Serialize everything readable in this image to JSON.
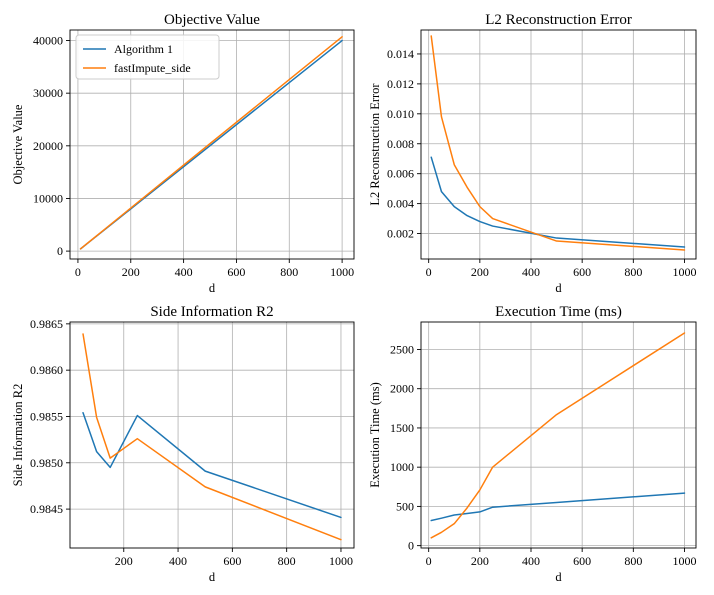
{
  "colors": {
    "algorithm1": "#1f77b4",
    "fastimpute": "#ff7f0e"
  },
  "chart_data": [
    {
      "type": "line",
      "title": "Objective Value",
      "xlabel": "d",
      "ylabel": "Objective Value",
      "xlim": [
        -30,
        1045
      ],
      "ylim": [
        -1500,
        42000
      ],
      "xticks": [
        0,
        200,
        400,
        600,
        800,
        1000
      ],
      "yticks": [
        0,
        10000,
        20000,
        30000,
        40000
      ],
      "grid": true,
      "legend": {
        "placement": "top-left",
        "entries": [
          "Algorithm 1",
          "fastImpute_side"
        ]
      },
      "series": [
        {
          "name": "Algorithm 1",
          "color": "#1f77b4",
          "x": [
            10,
            50,
            100,
            150,
            200,
            250,
            500,
            1000
          ],
          "y": [
            420,
            2020,
            4020,
            6020,
            8020,
            10020,
            20020,
            40000
          ]
        },
        {
          "name": "fastImpute_side",
          "color": "#ff7f0e",
          "x": [
            10,
            50,
            100,
            150,
            200,
            250,
            500,
            1000
          ],
          "y": [
            430,
            2060,
            4100,
            6140,
            8180,
            10220,
            20420,
            40700
          ]
        }
      ]
    },
    {
      "type": "line",
      "title": "L2 Reconstruction Error",
      "xlabel": "d",
      "ylabel": "L2 Reconstruction Error",
      "xlim": [
        -30,
        1045
      ],
      "ylim": [
        0.0003,
        0.0156
      ],
      "xticks": [
        0,
        200,
        400,
        600,
        800,
        1000
      ],
      "yticks": [
        0.002,
        0.004,
        0.006,
        0.008,
        0.01,
        0.012,
        0.014
      ],
      "yticklabels": [
        "0.002",
        "0.004",
        "0.006",
        "0.008",
        "0.010",
        "0.012",
        "0.014"
      ],
      "grid": true,
      "series": [
        {
          "name": "Algorithm 1",
          "color": "#1f77b4",
          "x": [
            10,
            50,
            100,
            150,
            200,
            250,
            500,
            1000
          ],
          "y": [
            0.0071,
            0.0048,
            0.0038,
            0.0032,
            0.0028,
            0.0025,
            0.0017,
            0.0011
          ]
        },
        {
          "name": "fastImpute_side",
          "color": "#ff7f0e",
          "x": [
            10,
            50,
            100,
            150,
            200,
            250,
            500,
            1000
          ],
          "y": [
            0.0152,
            0.0098,
            0.0066,
            0.0051,
            0.0038,
            0.003,
            0.0015,
            0.0009
          ]
        }
      ]
    },
    {
      "type": "line",
      "title": "Side Information R2",
      "xlabel": "d",
      "ylabel": "Side Information R2",
      "xlim": [
        2,
        1048
      ],
      "ylim": [
        0.98408,
        0.98652
      ],
      "xticks": [
        200,
        400,
        600,
        800,
        1000
      ],
      "yticks": [
        0.9845,
        0.985,
        0.9855,
        0.986,
        0.9865
      ],
      "yticklabels": [
        "0.9845",
        "0.9850",
        "0.9855",
        "0.9860",
        "0.9865"
      ],
      "grid": true,
      "series": [
        {
          "name": "Algorithm 1",
          "color": "#1f77b4",
          "x": [
            50,
            100,
            150,
            250,
            500,
            1000
          ],
          "y": [
            0.98554,
            0.98512,
            0.98495,
            0.98551,
            0.98491,
            0.98441
          ]
        },
        {
          "name": "fastImpute_side",
          "color": "#ff7f0e",
          "x": [
            50,
            100,
            150,
            250,
            500,
            1000
          ],
          "y": [
            0.98639,
            0.98549,
            0.98505,
            0.98526,
            0.98474,
            0.98417
          ]
        }
      ]
    },
    {
      "type": "line",
      "title": "Execution Time (ms)",
      "xlabel": "d",
      "ylabel": "Execution Time (ms)",
      "xlim": [
        -30,
        1045
      ],
      "ylim": [
        -30,
        2850
      ],
      "xticks": [
        0,
        200,
        400,
        600,
        800,
        1000
      ],
      "yticks": [
        0,
        500,
        1000,
        1500,
        2000,
        2500
      ],
      "grid": true,
      "series": [
        {
          "name": "Algorithm 1",
          "color": "#1f77b4",
          "x": [
            10,
            50,
            100,
            150,
            200,
            250,
            500,
            1000
          ],
          "y": [
            320,
            350,
            390,
            410,
            430,
            490,
            550,
            670
          ]
        },
        {
          "name": "fastImpute_side",
          "color": "#ff7f0e",
          "x": [
            10,
            50,
            100,
            150,
            200,
            250,
            500,
            1000
          ],
          "y": [
            100,
            170,
            280,
            480,
            710,
            1000,
            1670,
            2710
          ]
        }
      ]
    }
  ]
}
